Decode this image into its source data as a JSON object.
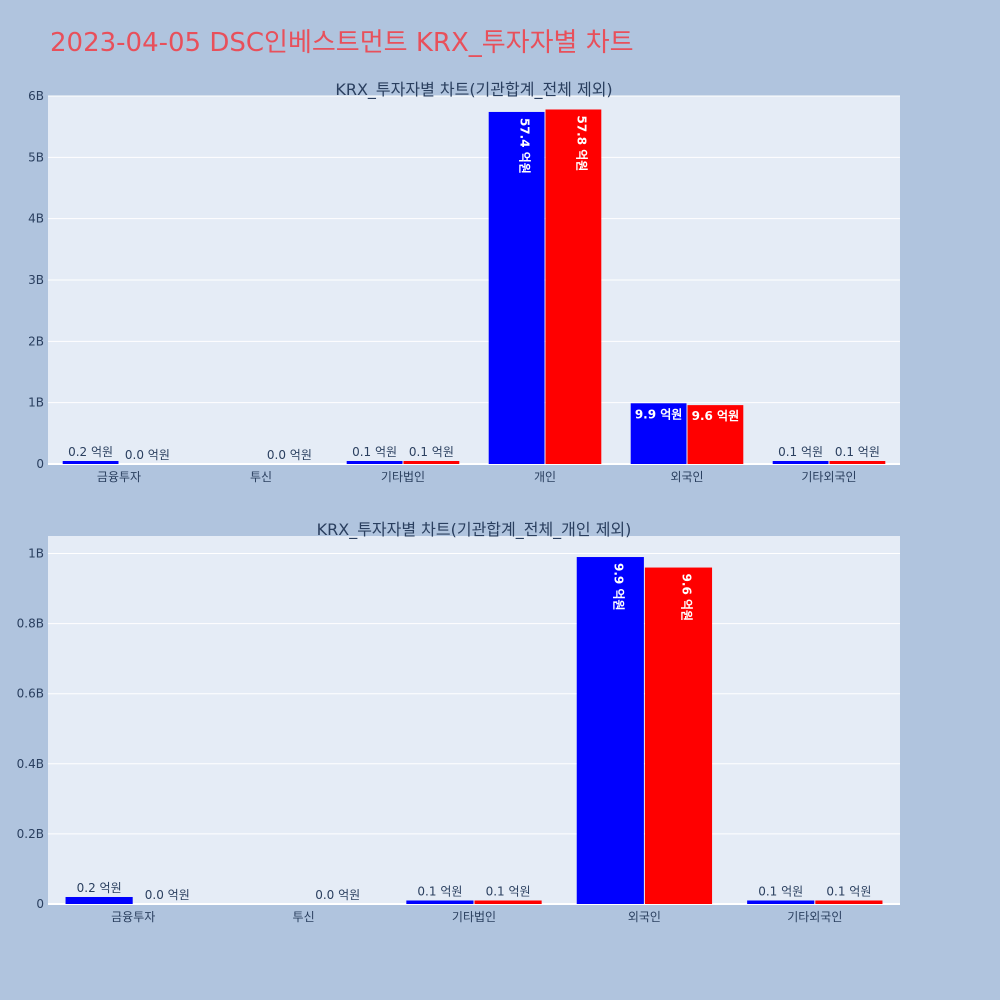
{
  "page_title": "2023-04-05 DSC인베스트먼트 KRX_투자자별 차트",
  "colors": {
    "background": "#b0c4de",
    "plot_bg": "#e5ecf6",
    "series_1": "#0000ff",
    "series_2": "#ff0000",
    "title": "#e8505b"
  },
  "chart_data": [
    {
      "type": "bar",
      "barmode": "group",
      "title": "KRX_투자자별 차트(기관합계_전체 제외)",
      "categories": [
        "금융투자",
        "투신",
        "기타법인",
        "개인",
        "외국인",
        "기타외국인"
      ],
      "series": [
        {
          "color": "#0000ff",
          "values": [
            20000000,
            0,
            10000000,
            5740000000,
            990000000,
            10000000
          ],
          "labels": [
            "0.2 억원",
            "",
            "0.1 억원",
            "57.4 억원",
            "9.9 억원",
            "0.1 억원"
          ]
        },
        {
          "color": "#ff0000",
          "values": [
            0,
            0,
            10000000,
            5780000000,
            960000000,
            10000000
          ],
          "labels": [
            "0.0 억원",
            "0.0 억원",
            "0.1 억원",
            "57.8 억원",
            "9.6 억원",
            "0.1 억원"
          ]
        }
      ],
      "ylim": [
        0,
        6000000000
      ],
      "yticks": [
        0,
        1000000000,
        2000000000,
        3000000000,
        4000000000,
        5000000000,
        6000000000
      ],
      "ytick_labels": [
        "0",
        "1B",
        "2B",
        "3B",
        "4B",
        "5B",
        "6B"
      ],
      "grid": true
    },
    {
      "type": "bar",
      "barmode": "group",
      "title": "KRX_투자자별 차트(기관합계_전체_개인 제외)",
      "categories": [
        "금융투자",
        "투신",
        "기타법인",
        "외국인",
        "기타외국인"
      ],
      "series": [
        {
          "color": "#0000ff",
          "values": [
            20000000,
            0,
            10000000,
            990000000,
            10000000
          ],
          "labels": [
            "0.2 억원",
            "",
            "0.1 억원",
            "9.9 억원",
            "0.1 억원"
          ]
        },
        {
          "color": "#ff0000",
          "values": [
            0,
            0,
            10000000,
            960000000,
            10000000
          ],
          "labels": [
            "0.0 억원",
            "0.0 억원",
            "0.1 억원",
            "9.6 억원",
            "0.1 억원"
          ]
        }
      ],
      "ylim": [
        0,
        1050000000
      ],
      "yticks": [
        0,
        200000000,
        400000000,
        600000000,
        800000000,
        1000000000
      ],
      "ytick_labels": [
        "0",
        "0.2B",
        "0.4B",
        "0.6B",
        "0.8B",
        "1B"
      ],
      "grid": true
    }
  ]
}
